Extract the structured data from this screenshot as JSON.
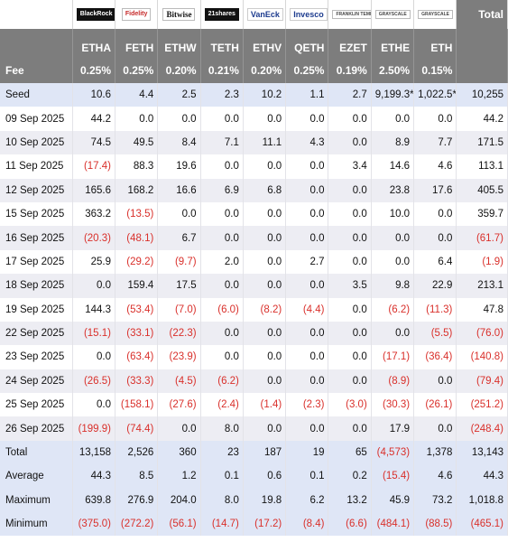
{
  "header": {
    "logos": [
      {
        "text": "BlackRock",
        "icon": "blackrock-logo",
        "style": "dark"
      },
      {
        "text": "Fidelity",
        "icon": "fidelity-logo",
        "style": "red"
      },
      {
        "text": "Bitwise",
        "icon": "bitwise-logo",
        "style": "serif"
      },
      {
        "text": "21shares",
        "icon": "21shares-logo",
        "style": "dark"
      },
      {
        "text": "VanEck",
        "icon": "vaneck-logo",
        "style": "blue"
      },
      {
        "text": "Invesco",
        "icon": "invesco-logo",
        "style": "blue"
      },
      {
        "text": "FRANKLIN TEMPLETON",
        "icon": "franklin-templeton-logo",
        "style": "small"
      },
      {
        "text": "GRAYSCALE",
        "icon": "grayscale-logo",
        "style": "small"
      },
      {
        "text": "GRAYSCALE",
        "icon": "grayscale-logo",
        "style": "small"
      }
    ],
    "total_label": "Total",
    "tickers": [
      "ETHA",
      "FETH",
      "ETHW",
      "TETH",
      "ETHV",
      "QETH",
      "EZET",
      "ETHE",
      "ETH"
    ],
    "fee_label": "Fee",
    "fees": [
      "0.25%",
      "0.25%",
      "0.20%",
      "0.21%",
      "0.20%",
      "0.25%",
      "0.19%",
      "2.50%",
      "0.15%"
    ]
  },
  "rows": [
    {
      "label": "Seed",
      "kind": "seed",
      "values": [
        "10.6",
        "4.4",
        "2.5",
        "2.3",
        "10.2",
        "1.1",
        "2.7",
        "9,199.3*",
        "1,022.5*",
        "10,255"
      ]
    },
    {
      "label": "09 Sep 2025",
      "kind": "plain",
      "values": [
        "44.2",
        "0.0",
        "0.0",
        "0.0",
        "0.0",
        "0.0",
        "0.0",
        "0.0",
        "0.0",
        "44.2"
      ]
    },
    {
      "label": "10 Sep 2025",
      "kind": "alt",
      "values": [
        "74.5",
        "49.5",
        "8.4",
        "7.1",
        "11.1",
        "4.3",
        "0.0",
        "8.9",
        "7.7",
        "171.5"
      ]
    },
    {
      "label": "11 Sep 2025",
      "kind": "plain",
      "values": [
        "(17.4)",
        "88.3",
        "19.6",
        "0.0",
        "0.0",
        "0.0",
        "3.4",
        "14.6",
        "4.6",
        "113.1"
      ]
    },
    {
      "label": "12 Sep 2025",
      "kind": "alt",
      "values": [
        "165.6",
        "168.2",
        "16.6",
        "6.9",
        "6.8",
        "0.0",
        "0.0",
        "23.8",
        "17.6",
        "405.5"
      ]
    },
    {
      "label": "15 Sep 2025",
      "kind": "plain",
      "values": [
        "363.2",
        "(13.5)",
        "0.0",
        "0.0",
        "0.0",
        "0.0",
        "0.0",
        "10.0",
        "0.0",
        "359.7"
      ]
    },
    {
      "label": "16 Sep 2025",
      "kind": "alt",
      "values": [
        "(20.3)",
        "(48.1)",
        "6.7",
        "0.0",
        "0.0",
        "0.0",
        "0.0",
        "0.0",
        "0.0",
        "(61.7)"
      ]
    },
    {
      "label": "17 Sep 2025",
      "kind": "plain",
      "values": [
        "25.9",
        "(29.2)",
        "(9.7)",
        "2.0",
        "0.0",
        "2.7",
        "0.0",
        "0.0",
        "6.4",
        "(1.9)"
      ]
    },
    {
      "label": "18 Sep 2025",
      "kind": "alt",
      "values": [
        "0.0",
        "159.4",
        "17.5",
        "0.0",
        "0.0",
        "0.0",
        "3.5",
        "9.8",
        "22.9",
        "213.1"
      ]
    },
    {
      "label": "19 Sep 2025",
      "kind": "plain",
      "values": [
        "144.3",
        "(53.4)",
        "(7.0)",
        "(6.0)",
        "(8.2)",
        "(4.4)",
        "0.0",
        "(6.2)",
        "(11.3)",
        "47.8"
      ]
    },
    {
      "label": "22 Sep 2025",
      "kind": "alt",
      "values": [
        "(15.1)",
        "(33.1)",
        "(22.3)",
        "0.0",
        "0.0",
        "0.0",
        "0.0",
        "0.0",
        "(5.5)",
        "(76.0)"
      ]
    },
    {
      "label": "23 Sep 2025",
      "kind": "plain",
      "values": [
        "0.0",
        "(63.4)",
        "(23.9)",
        "0.0",
        "0.0",
        "0.0",
        "0.0",
        "(17.1)",
        "(36.4)",
        "(140.8)"
      ]
    },
    {
      "label": "24 Sep 2025",
      "kind": "alt",
      "values": [
        "(26.5)",
        "(33.3)",
        "(4.5)",
        "(6.2)",
        "0.0",
        "0.0",
        "0.0",
        "(8.9)",
        "0.0",
        "(79.4)"
      ]
    },
    {
      "label": "25 Sep 2025",
      "kind": "plain",
      "values": [
        "0.0",
        "(158.1)",
        "(27.6)",
        "(2.4)",
        "(1.4)",
        "(2.3)",
        "(3.0)",
        "(30.3)",
        "(26.1)",
        "(251.2)"
      ]
    },
    {
      "label": "26 Sep 2025",
      "kind": "alt",
      "values": [
        "(199.9)",
        "(74.4)",
        "0.0",
        "8.0",
        "0.0",
        "0.0",
        "0.0",
        "17.9",
        "0.0",
        "(248.4)"
      ]
    },
    {
      "label": "Total",
      "kind": "stat",
      "values": [
        "13,158",
        "2,526",
        "360",
        "23",
        "187",
        "19",
        "65",
        "(4,573)",
        "1,378",
        "13,143"
      ]
    },
    {
      "label": "Average",
      "kind": "stat",
      "values": [
        "44.3",
        "8.5",
        "1.2",
        "0.1",
        "0.6",
        "0.1",
        "0.2",
        "(15.4)",
        "4.6",
        "44.3"
      ]
    },
    {
      "label": "Maximum",
      "kind": "stat",
      "values": [
        "639.8",
        "276.9",
        "204.0",
        "8.0",
        "19.8",
        "6.2",
        "13.2",
        "45.9",
        "73.2",
        "1,018.8"
      ]
    },
    {
      "label": "Minimum",
      "kind": "stat",
      "values": [
        "(375.0)",
        "(272.2)",
        "(56.1)",
        "(14.7)",
        "(17.2)",
        "(8.4)",
        "(6.6)",
        "(484.1)",
        "(88.5)",
        "(465.1)"
      ]
    }
  ],
  "colors": {
    "header_bg": "#7d7d7d",
    "negative": "#d9302b",
    "highlight_row": "#dfe6f6",
    "alt_row": "#ededf3"
  }
}
